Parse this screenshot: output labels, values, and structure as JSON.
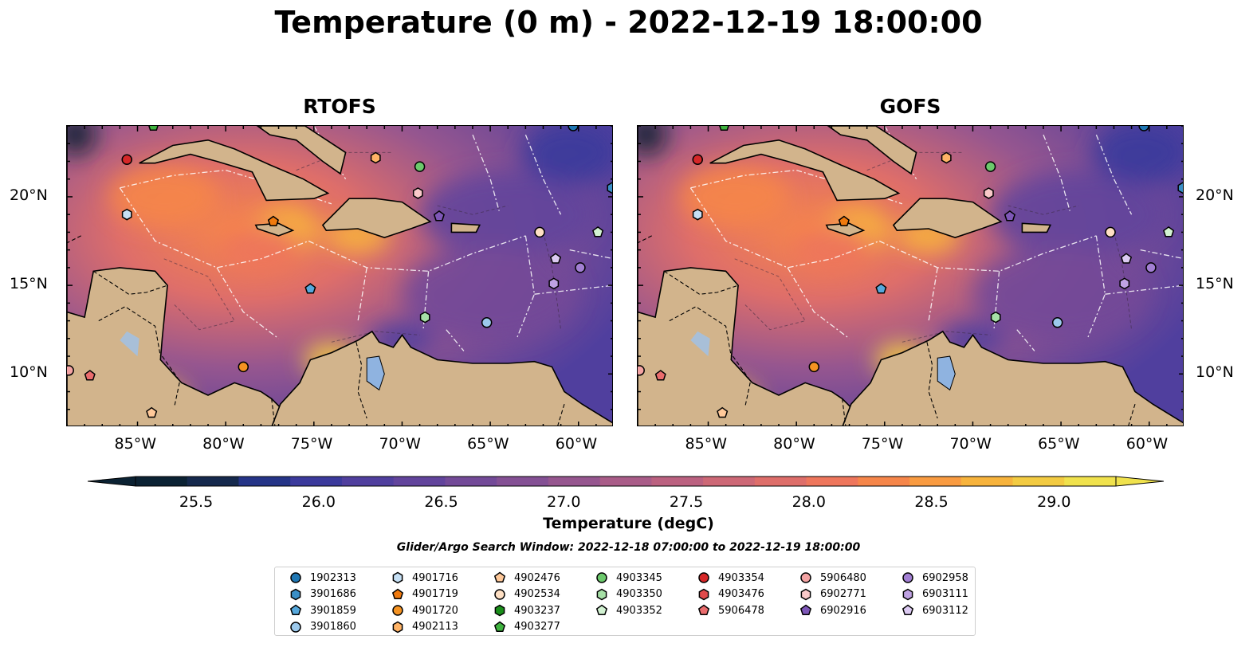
{
  "title": "Temperature (0 m) - 2022-12-19 18:00:00",
  "panels": [
    {
      "title": "RTOFS"
    },
    {
      "title": "GOFS"
    }
  ],
  "axes": {
    "lon_labels": [
      "85°W",
      "80°W",
      "75°W",
      "70°W",
      "65°W",
      "60°W"
    ],
    "lat_labels": [
      "20°N",
      "15°N",
      "10°N"
    ],
    "lon_values": [
      -85,
      -80,
      -75,
      -70,
      -65,
      -60
    ],
    "lat_values": [
      20,
      15,
      10
    ],
    "lon_range": [
      -89.0,
      -58.0
    ],
    "lat_range": [
      7.0,
      24.0
    ]
  },
  "colorbar": {
    "label": "Temperature (degC)",
    "ticks": [
      "25.5",
      "26.0",
      "26.5",
      "27.0",
      "27.5",
      "28.0",
      "28.5",
      "29.0"
    ],
    "tick_values": [
      25.5,
      26.0,
      26.5,
      27.0,
      27.5,
      28.0,
      28.5,
      29.0
    ],
    "range": [
      25.25,
      29.25
    ],
    "colors": [
      "#0b2233",
      "#15294d",
      "#253487",
      "#3b3a9c",
      "#503f9e",
      "#62449c",
      "#734a98",
      "#845094",
      "#96568f",
      "#a95c88",
      "#bb6180",
      "#cd6876",
      "#de6e6a",
      "#ee765c",
      "#f6864a",
      "#f99b41",
      "#f7b33c",
      "#f3cb42",
      "#f0e24d"
    ]
  },
  "search_window": "Glider/Argo Search Window: 2022-12-18 07:00:00 to 2022-12-19 18:00:00",
  "legend": [
    {
      "id": "1902313",
      "color": "#1f77b4",
      "marker": "circle"
    },
    {
      "id": "3901686",
      "color": "#3a8fc7",
      "marker": "hexagon"
    },
    {
      "id": "3901859",
      "color": "#56a8dc",
      "marker": "pentagon"
    },
    {
      "id": "3901860",
      "color": "#9cc9ec",
      "marker": "circle"
    },
    {
      "id": "4901716",
      "color": "#c6e0f5",
      "marker": "hexagon"
    },
    {
      "id": "4901719",
      "color": "#f07a0e",
      "marker": "pentagon"
    },
    {
      "id": "4901720",
      "color": "#f59322",
      "marker": "circle"
    },
    {
      "id": "4902113",
      "color": "#ffb366",
      "marker": "hexagon"
    },
    {
      "id": "4902476",
      "color": "#ffc99a",
      "marker": "pentagon"
    },
    {
      "id": "4902534",
      "color": "#ffe0c4",
      "marker": "circle"
    },
    {
      "id": "4903237",
      "color": "#1a8f1a",
      "marker": "hexagon"
    },
    {
      "id": "4903277",
      "color": "#3fb33f",
      "marker": "pentagon"
    },
    {
      "id": "4903345",
      "color": "#6cc96c",
      "marker": "circle"
    },
    {
      "id": "4903350",
      "color": "#a6e0a6",
      "marker": "hexagon"
    },
    {
      "id": "4903352",
      "color": "#d2f2d2",
      "marker": "pentagon"
    },
    {
      "id": "4903354",
      "color": "#d62728",
      "marker": "circle"
    },
    {
      "id": "4903476",
      "color": "#e04a4b",
      "marker": "hexagon"
    },
    {
      "id": "5906478",
      "color": "#ea6c6d",
      "marker": "pentagon"
    },
    {
      "id": "5906480",
      "color": "#f4a3a3",
      "marker": "circle"
    },
    {
      "id": "6902771",
      "color": "#f9c9c9",
      "marker": "hexagon"
    },
    {
      "id": "6902916",
      "color": "#7e57b8",
      "marker": "pentagon"
    },
    {
      "id": "6902958",
      "color": "#a27fd3",
      "marker": "circle"
    },
    {
      "id": "6903111",
      "color": "#bfa2e3",
      "marker": "hexagon"
    },
    {
      "id": "6903112",
      "color": "#dccaf2",
      "marker": "pentagon"
    }
  ],
  "floats": [
    {
      "id": "1902313",
      "lon": -60.3,
      "lat": 24.0
    },
    {
      "id": "3901686",
      "lon": -58.1,
      "lat": 20.5
    },
    {
      "id": "3901859",
      "lon": -75.2,
      "lat": 14.8
    },
    {
      "id": "3901860",
      "lon": -65.2,
      "lat": 12.9
    },
    {
      "id": "4901716",
      "lon": -85.6,
      "lat": 19.0
    },
    {
      "id": "4901719",
      "lon": -77.3,
      "lat": 18.6
    },
    {
      "id": "4901720",
      "lon": -79.0,
      "lat": 10.4
    },
    {
      "id": "4902113",
      "lon": -71.5,
      "lat": 22.2
    },
    {
      "id": "4902476",
      "lon": -84.2,
      "lat": 7.8
    },
    {
      "id": "4902534",
      "lon": -62.2,
      "lat": 18.0
    },
    {
      "id": "4903277",
      "lon": -84.1,
      "lat": 24.0
    },
    {
      "id": "4903345",
      "lon": -69.0,
      "lat": 21.7
    },
    {
      "id": "4903350",
      "lon": -68.7,
      "lat": 13.2
    },
    {
      "id": "4903352",
      "lon": -58.9,
      "lat": 18.0
    },
    {
      "id": "4903354",
      "lon": -85.6,
      "lat": 22.1
    },
    {
      "id": "5906478",
      "lon": -87.7,
      "lat": 9.9
    },
    {
      "id": "5906480",
      "lon": -88.9,
      "lat": 10.2
    },
    {
      "id": "6902771",
      "lon": -69.1,
      "lat": 20.2
    },
    {
      "id": "6902916",
      "lon": -67.9,
      "lat": 18.9
    },
    {
      "id": "6902958",
      "lon": -59.9,
      "lat": 16.0
    },
    {
      "id": "6903111",
      "lon": -61.4,
      "lat": 15.1
    },
    {
      "id": "6903112",
      "lon": -61.3,
      "lat": 16.5
    }
  ]
}
